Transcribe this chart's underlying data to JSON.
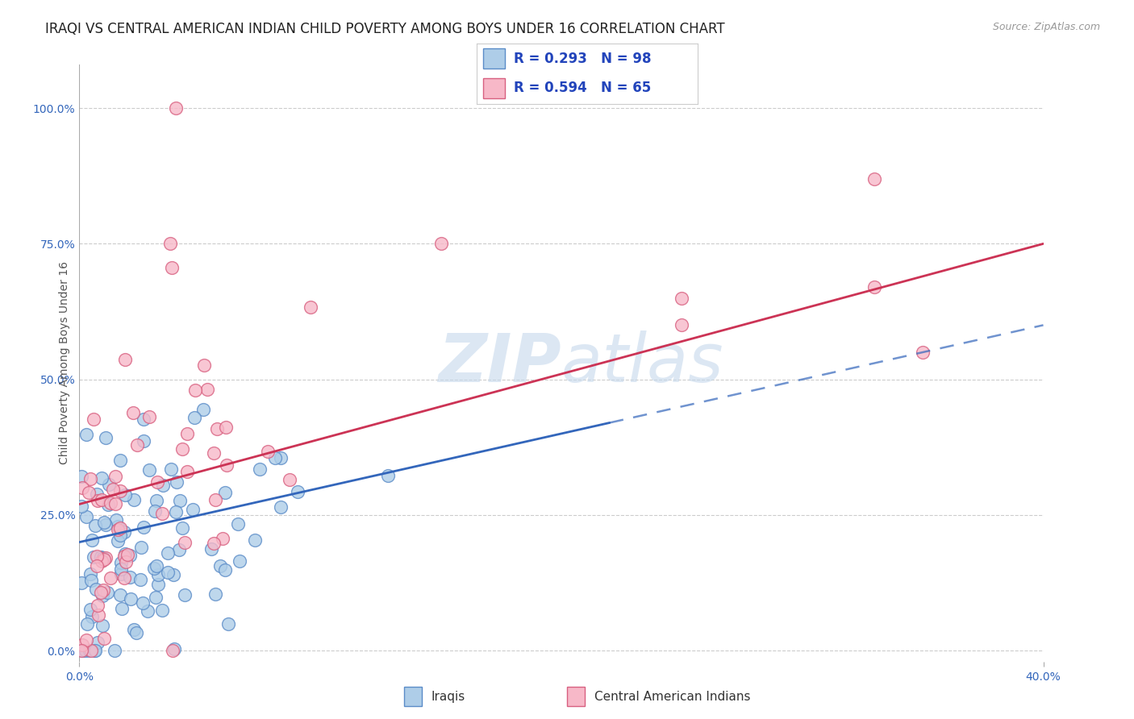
{
  "title": "IRAQI VS CENTRAL AMERICAN INDIAN CHILD POVERTY AMONG BOYS UNDER 16 CORRELATION CHART",
  "source": "Source: ZipAtlas.com",
  "ylabel": "Child Poverty Among Boys Under 16",
  "ytick_labels": [
    "0.0%",
    "25.0%",
    "50.0%",
    "75.0%",
    "100.0%"
  ],
  "ytick_values": [
    0.0,
    0.25,
    0.5,
    0.75,
    1.0
  ],
  "xtick_labels": [
    "0.0%",
    "40.0%"
  ],
  "xtick_values": [
    0.0,
    0.4
  ],
  "xlim": [
    0.0,
    0.4
  ],
  "ylim": [
    -0.02,
    1.08
  ],
  "series1_label": "Iraqis",
  "series2_label": "Central American Indians",
  "series1_r": 0.293,
  "series1_n": 98,
  "series2_r": 0.594,
  "series2_n": 65,
  "series1_fc": "#aecde8",
  "series1_ec": "#5b8cc8",
  "series2_fc": "#f7b8c8",
  "series2_ec": "#d86080",
  "trendline1_color": "#3366bb",
  "trendline2_color": "#cc3355",
  "trendline_dashed_color": "#88aadd",
  "watermark_color": "#c5d8ec",
  "title_fontsize": 12,
  "axis_label_fontsize": 10,
  "tick_fontsize": 10,
  "legend_fontsize": 12
}
